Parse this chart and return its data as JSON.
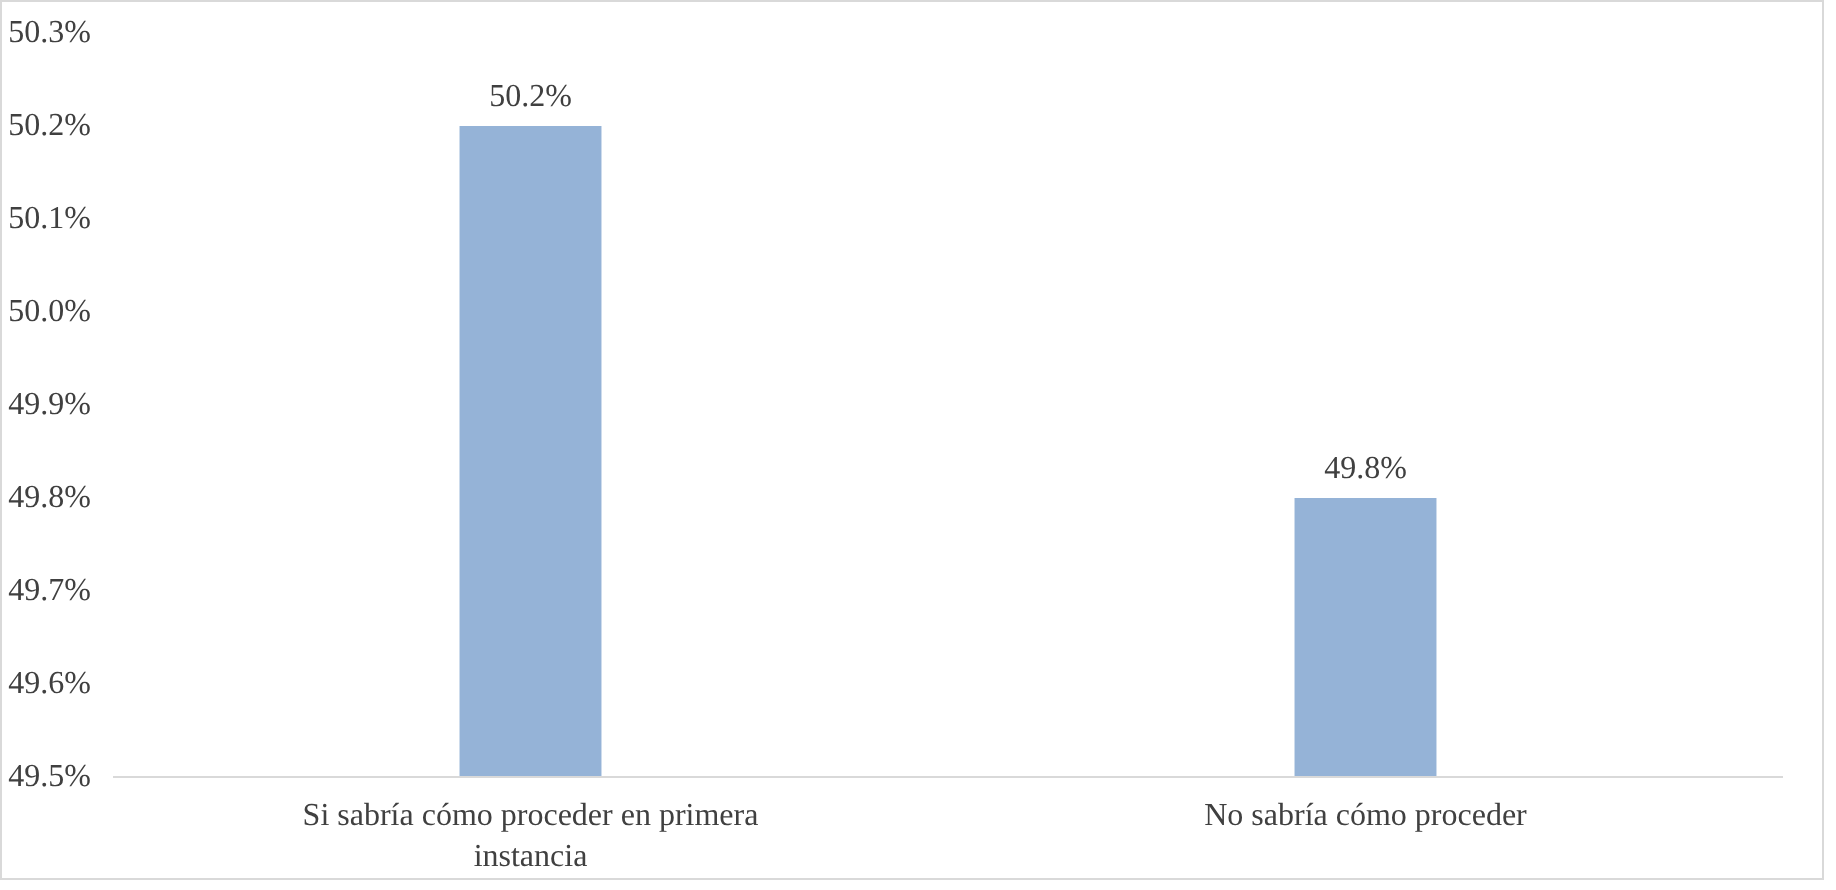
{
  "chart_data": {
    "type": "bar",
    "categories": [
      "Si sabría cómo proceder en primera instancia",
      "No sabría cómo proceder"
    ],
    "values": [
      50.2,
      49.8
    ],
    "color": "#95b3d7",
    "value_labels": [
      "50.2%",
      "49.8%"
    ],
    "ylim": [
      49.5,
      50.3
    ],
    "yticks": [
      {
        "value": 49.5,
        "label": "49.5%"
      },
      {
        "value": 49.6,
        "label": "49.6%"
      },
      {
        "value": 49.7,
        "label": "49.7%"
      },
      {
        "value": 49.8,
        "label": "49.8%"
      },
      {
        "value": 49.9,
        "label": "49.9%"
      },
      {
        "value": 50.0,
        "label": "50.0%"
      },
      {
        "value": 50.1,
        "label": "50.1%"
      },
      {
        "value": 50.2,
        "label": "50.2%"
      },
      {
        "value": 50.3,
        "label": "50.3%"
      }
    ],
    "grid": false
  }
}
